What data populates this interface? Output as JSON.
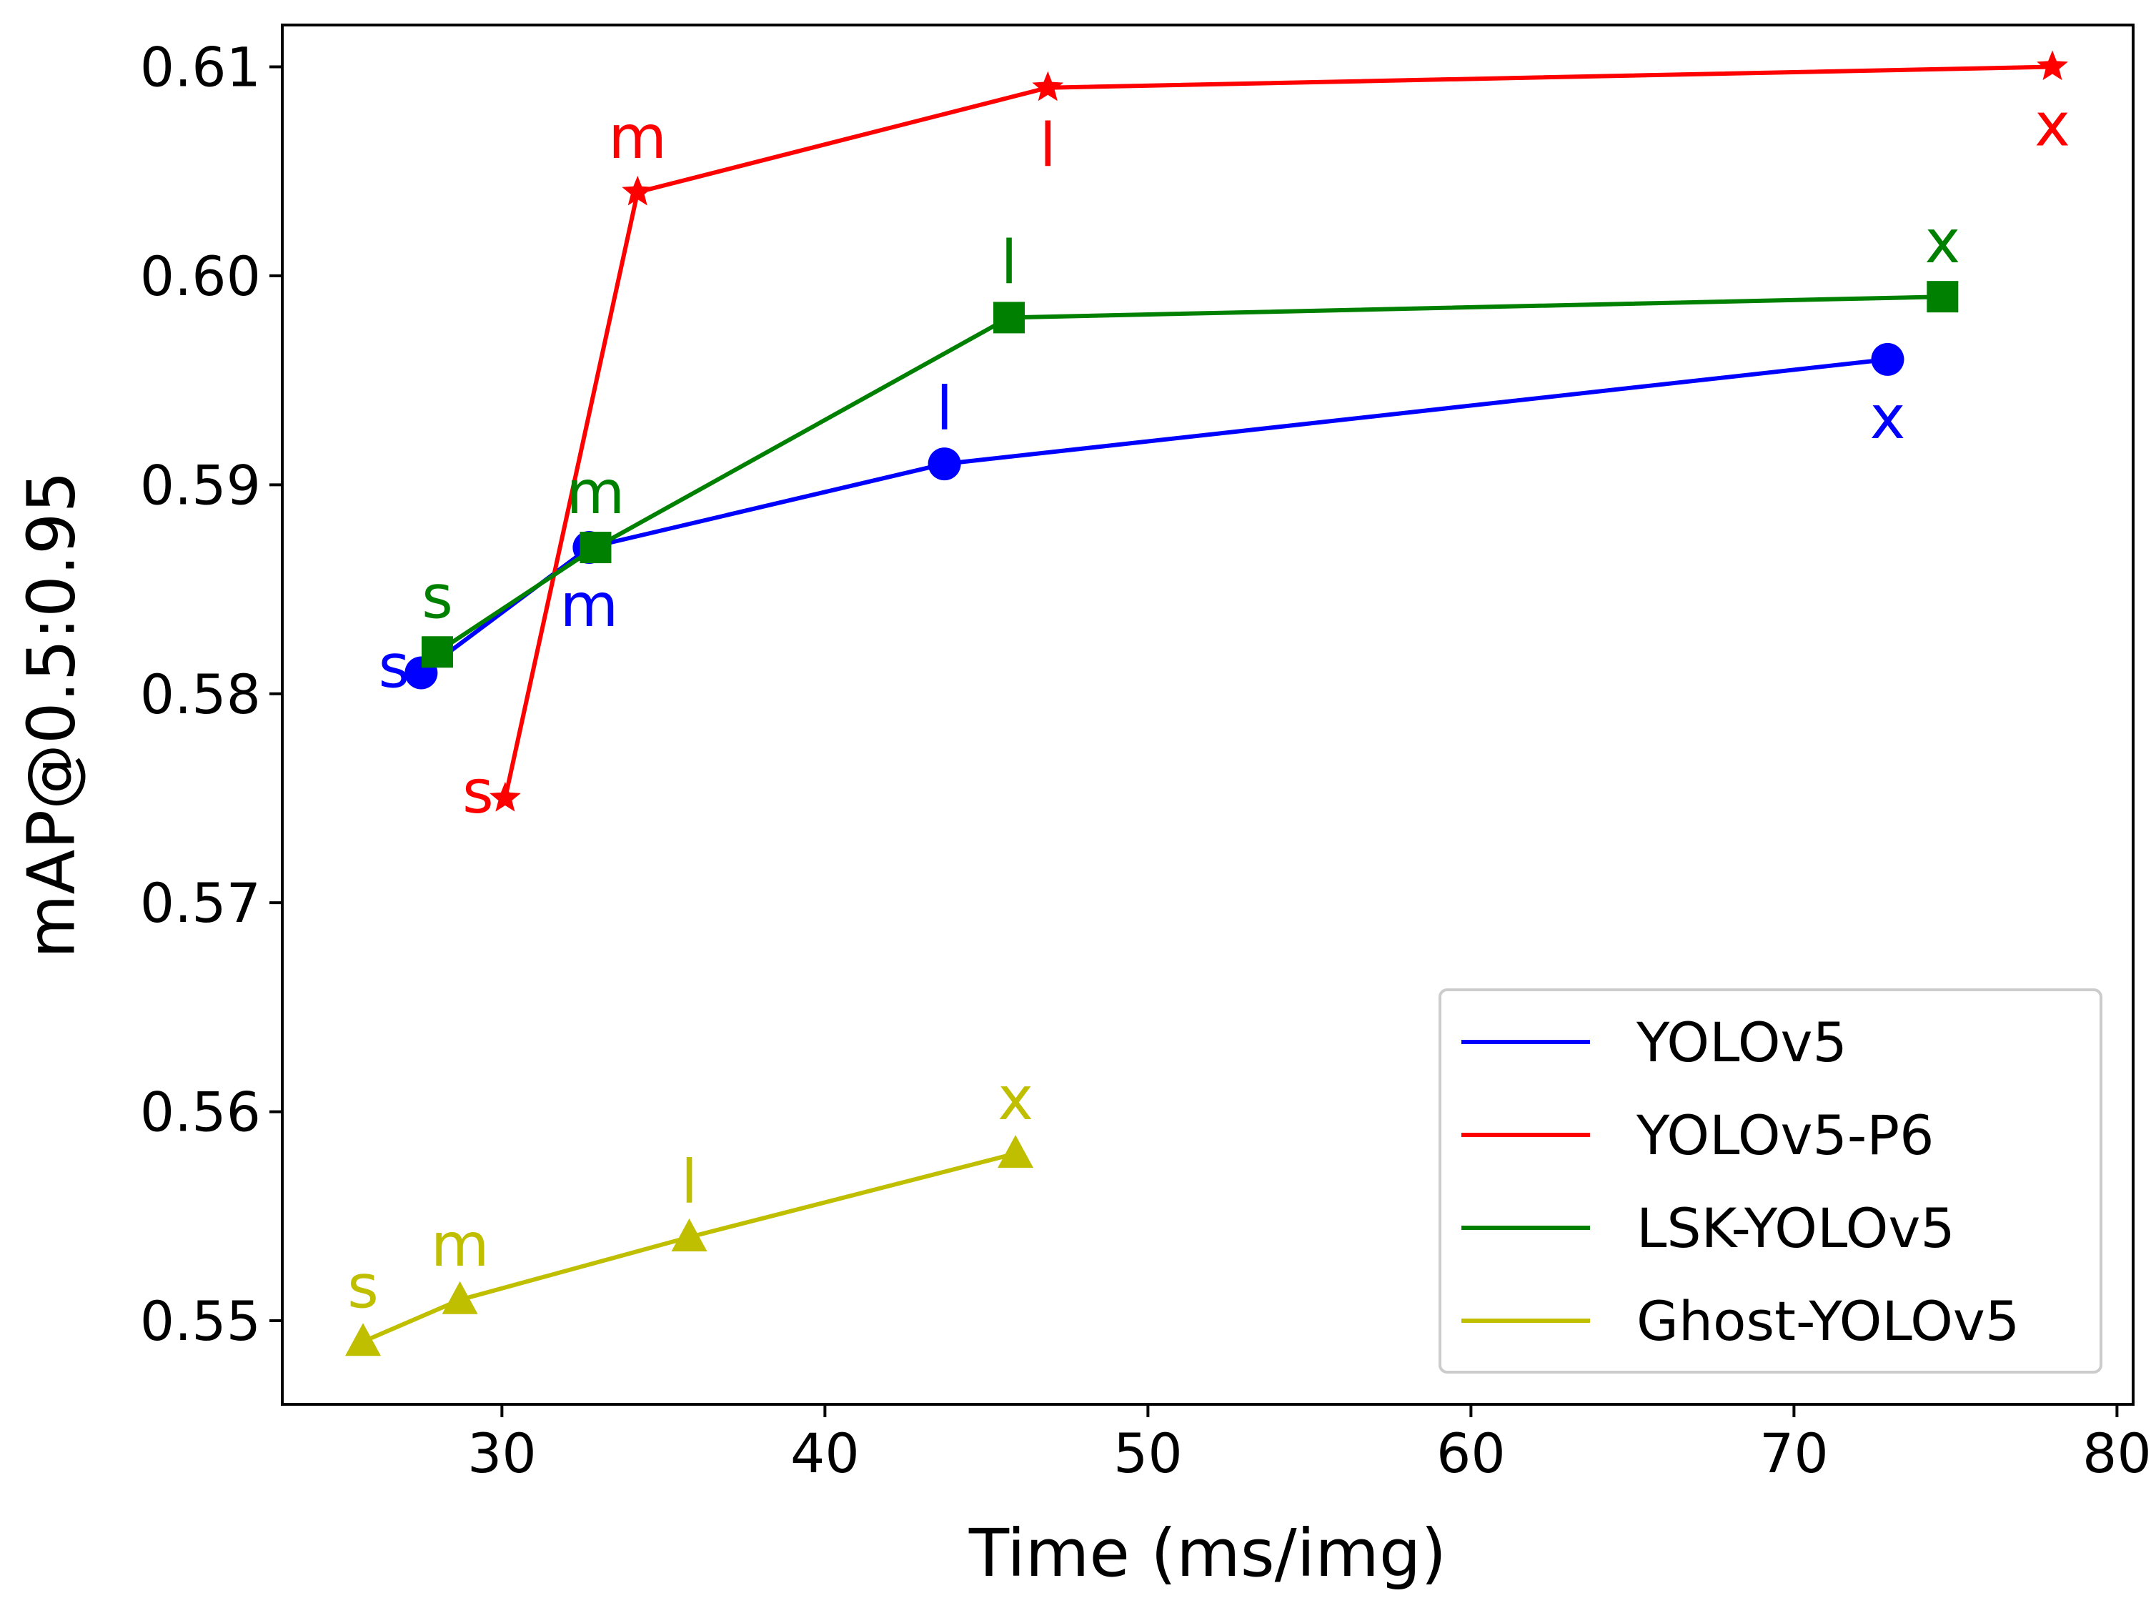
{
  "chart_data": {
    "type": "line",
    "title": "",
    "xlabel": "Time (ms/img)",
    "ylabel": "mAP@0.5:0.95",
    "xlim": [
      23.2,
      80.5
    ],
    "ylim": [
      0.546,
      0.612
    ],
    "xticks": [
      30,
      40,
      50,
      60,
      70,
      80
    ],
    "yticks": [
      0.55,
      0.56,
      0.57,
      0.58,
      0.59,
      0.6,
      0.61
    ],
    "xtick_labels": [
      "30",
      "40",
      "50",
      "60",
      "70",
      "80"
    ],
    "ytick_labels": [
      "0.55",
      "0.56",
      "0.57",
      "0.58",
      "0.59",
      "0.60",
      "0.61"
    ],
    "grid": false,
    "legend_position": "lower-right",
    "series": [
      {
        "name": "YOLOv5",
        "color": "#0000ff",
        "marker": "circle",
        "points": [
          {
            "label": "s",
            "x": 27.5,
            "y": 0.581,
            "label_pos": "left"
          },
          {
            "label": "m",
            "x": 32.7,
            "y": 0.587,
            "label_pos": "below"
          },
          {
            "label": "l",
            "x": 43.7,
            "y": 0.591,
            "label_pos": "above"
          },
          {
            "label": "x",
            "x": 72.9,
            "y": 0.596,
            "label_pos": "below"
          }
        ]
      },
      {
        "name": "YOLOv5-P6",
        "color": "#ff0000",
        "marker": "star",
        "points": [
          {
            "label": "s",
            "x": 30.1,
            "y": 0.575,
            "label_pos": "left"
          },
          {
            "label": "m",
            "x": 34.2,
            "y": 0.604,
            "label_pos": "above"
          },
          {
            "label": "l",
            "x": 46.9,
            "y": 0.609,
            "label_pos": "below"
          },
          {
            "label": "x",
            "x": 78.0,
            "y": 0.61,
            "label_pos": "below"
          }
        ]
      },
      {
        "name": "LSK-YOLOv5",
        "color": "#008000",
        "marker": "square",
        "points": [
          {
            "label": "s",
            "x": 28.0,
            "y": 0.582,
            "label_pos": "above"
          },
          {
            "label": "m",
            "x": 32.9,
            "y": 0.587,
            "label_pos": "above"
          },
          {
            "label": "l",
            "x": 45.7,
            "y": 0.598,
            "label_pos": "above"
          },
          {
            "label": "x",
            "x": 74.6,
            "y": 0.599,
            "label_pos": "above"
          }
        ]
      },
      {
        "name": "Ghost-YOLOv5",
        "color": "#bfbf00",
        "marker": "triangle",
        "points": [
          {
            "label": "s",
            "x": 25.7,
            "y": 0.549,
            "label_pos": "above"
          },
          {
            "label": "m",
            "x": 28.7,
            "y": 0.551,
            "label_pos": "above"
          },
          {
            "label": "l",
            "x": 35.8,
            "y": 0.554,
            "label_pos": "above"
          },
          {
            "label": "x",
            "x": 45.9,
            "y": 0.558,
            "label_pos": "above"
          }
        ]
      }
    ]
  }
}
